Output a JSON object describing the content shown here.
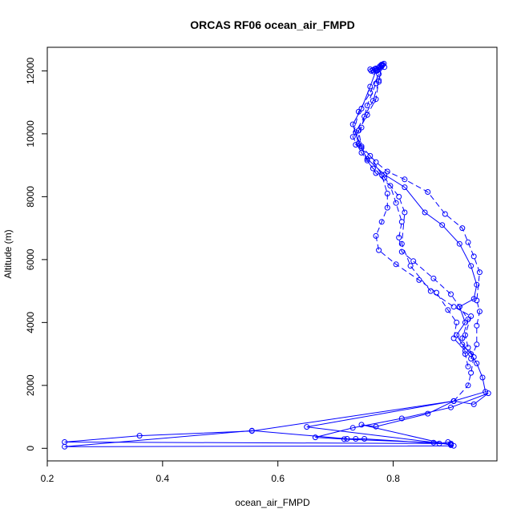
{
  "chart_data": {
    "type": "line",
    "title": "ORCAS RF06 ocean_air_FMPD",
    "xlabel": "ocean_air_FMPD",
    "ylabel": "Altitude (m)",
    "xlim": [
      0.2,
      0.98
    ],
    "ylim": [
      -400,
      12750
    ],
    "x_ticks": [
      0.2,
      0.4,
      0.6,
      0.8
    ],
    "y_ticks": [
      0,
      2000,
      4000,
      6000,
      8000,
      10000,
      12000
    ],
    "x_tick_labels": [
      "0.2",
      "0.4",
      "0.6",
      "0.8"
    ],
    "y_tick_labels": [
      "0",
      "2000",
      "4000",
      "6000",
      "8000",
      "10000",
      "12000"
    ],
    "grid": false,
    "legend": "none",
    "colors": {
      "series": "#0000ff"
    },
    "series": [
      {
        "style": "solid",
        "points": [
          [
            0.9,
            150
          ],
          [
            0.23,
            200
          ],
          [
            0.36,
            400
          ],
          [
            0.555,
            550
          ],
          [
            0.905,
            1500
          ],
          [
            0.96,
            1800
          ],
          [
            0.955,
            2250
          ],
          [
            0.945,
            2700
          ],
          [
            0.935,
            3000
          ],
          [
            0.92,
            3300
          ],
          [
            0.91,
            3600
          ],
          [
            0.925,
            4000
          ],
          [
            0.915,
            4500
          ],
          [
            0.94,
            4750
          ],
          [
            0.945,
            5200
          ],
          [
            0.935,
            5800
          ],
          [
            0.915,
            6500
          ],
          [
            0.885,
            7100
          ],
          [
            0.855,
            7500
          ],
          [
            0.82,
            8300
          ],
          [
            0.785,
            8700
          ],
          [
            0.755,
            9200
          ],
          [
            0.74,
            9700
          ],
          [
            0.73,
            10300
          ],
          [
            0.745,
            10800
          ],
          [
            0.76,
            11500
          ],
          [
            0.77,
            12000
          ],
          [
            0.775,
            12100
          ],
          [
            0.78,
            12200
          ]
        ]
      },
      {
        "style": "solid",
        "points": [
          [
            0.905,
            80
          ],
          [
            0.23,
            50
          ],
          [
            0.555,
            560
          ],
          [
            0.72,
            300
          ],
          [
            0.735,
            300
          ],
          [
            0.75,
            300
          ],
          [
            0.88,
            150
          ],
          [
            0.895,
            200
          ],
          [
            0.9,
            100
          ],
          [
            0.745,
            750
          ],
          [
            0.77,
            690
          ],
          [
            0.86,
            1100
          ],
          [
            0.905,
            1500
          ],
          [
            0.94,
            1400
          ],
          [
            0.965,
            1750
          ],
          [
            0.9,
            1300
          ],
          [
            0.815,
            950
          ],
          [
            0.73,
            650
          ],
          [
            0.665,
            350
          ],
          [
            0.715,
            290
          ],
          [
            0.87,
            180
          ],
          [
            0.9,
            120
          ],
          [
            0.65,
            680
          ],
          [
            0.905,
            1500
          ]
        ]
      },
      {
        "style": "dashed",
        "points": [
          [
            0.905,
            1500
          ],
          [
            0.93,
            2000
          ],
          [
            0.935,
            2400
          ],
          [
            0.94,
            2900
          ],
          [
            0.93,
            3200
          ],
          [
            0.925,
            3600
          ],
          [
            0.935,
            4200
          ],
          [
            0.905,
            4500
          ],
          [
            0.865,
            5000
          ],
          [
            0.83,
            5800
          ],
          [
            0.815,
            6500
          ],
          [
            0.82,
            7500
          ],
          [
            0.81,
            8000
          ],
          [
            0.785,
            8600
          ],
          [
            0.765,
            8900
          ],
          [
            0.745,
            9400
          ],
          [
            0.73,
            9900
          ],
          [
            0.74,
            10700
          ],
          [
            0.76,
            11300
          ],
          [
            0.775,
            11900
          ]
        ]
      },
      {
        "style": "dashed",
        "points": [
          [
            0.925,
            3100
          ],
          [
            0.905,
            3500
          ],
          [
            0.91,
            4000
          ],
          [
            0.895,
            4400
          ],
          [
            0.875,
            4950
          ],
          [
            0.845,
            5350
          ],
          [
            0.805,
            5850
          ],
          [
            0.775,
            6300
          ],
          [
            0.77,
            6750
          ],
          [
            0.78,
            7200
          ],
          [
            0.79,
            7650
          ],
          [
            0.79,
            8100
          ],
          [
            0.78,
            8700
          ],
          [
            0.76,
            9300
          ],
          [
            0.735,
            9650
          ],
          [
            0.745,
            10200
          ],
          [
            0.755,
            10900
          ],
          [
            0.77,
            11600
          ],
          [
            0.775,
            12050
          ]
        ]
      },
      {
        "style": "dashed",
        "points": [
          [
            0.935,
            2850
          ],
          [
            0.945,
            3300
          ],
          [
            0.945,
            3900
          ],
          [
            0.95,
            4350
          ],
          [
            0.945,
            4700
          ],
          [
            0.95,
            5600
          ],
          [
            0.94,
            6100
          ],
          [
            0.93,
            6550
          ],
          [
            0.92,
            7000
          ],
          [
            0.89,
            7450
          ],
          [
            0.86,
            8150
          ],
          [
            0.82,
            8550
          ],
          [
            0.79,
            8800
          ],
          [
            0.77,
            9100
          ],
          [
            0.745,
            9600
          ],
          [
            0.74,
            10100
          ],
          [
            0.755,
            10600
          ],
          [
            0.77,
            11100
          ],
          [
            0.775,
            11700
          ],
          [
            0.78,
            12150
          ]
        ]
      },
      {
        "style": "dashed",
        "points": [
          [
            0.93,
            2600
          ],
          [
            0.925,
            3000
          ],
          [
            0.92,
            3500
          ],
          [
            0.93,
            4100
          ],
          [
            0.915,
            4500
          ],
          [
            0.9,
            4900
          ],
          [
            0.87,
            5400
          ],
          [
            0.835,
            5950
          ],
          [
            0.815,
            6250
          ],
          [
            0.81,
            6700
          ],
          [
            0.815,
            7200
          ],
          [
            0.805,
            7800
          ],
          [
            0.795,
            8350
          ],
          [
            0.77,
            8750
          ],
          [
            0.755,
            9150
          ],
          [
            0.745,
            9550
          ],
          [
            0.735,
            10050
          ],
          [
            0.75,
            10550
          ],
          [
            0.765,
            11050
          ],
          [
            0.775,
            11650
          ],
          [
            0.78,
            12200
          ]
        ]
      }
    ],
    "top_cluster": [
      [
        0.76,
        12050
      ],
      [
        0.762,
        12000
      ],
      [
        0.765,
        12030
      ],
      [
        0.768,
        12060
      ],
      [
        0.77,
        12080
      ],
      [
        0.772,
        12000
      ],
      [
        0.775,
        12100
      ],
      [
        0.777,
        12150
      ],
      [
        0.78,
        12180
      ],
      [
        0.782,
        12200
      ],
      [
        0.784,
        12230
      ],
      [
        0.785,
        12120
      ],
      [
        0.771,
        12040
      ],
      [
        0.766,
        11980
      ],
      [
        0.779,
        12110
      ]
    ]
  }
}
